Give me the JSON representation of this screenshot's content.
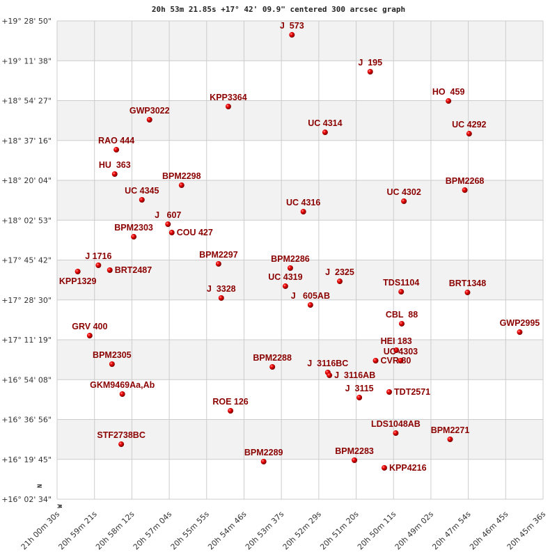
{
  "chart_data": {
    "type": "scatter",
    "title": "20h 53m 21.85s +17° 42' 09.9\" centered 300 arcsec graph",
    "x_axis": {
      "quantity": "right ascension",
      "direction": "decreasing to the right",
      "ticks": [
        "21h 00m 30s",
        "20h 59m 21s",
        "20h 58m 12s",
        "20h 57m 04s",
        "20h 55m 55s",
        "20h 54m 46s",
        "20h 53m 37s",
        "20h 52m 29s",
        "20h 51m 20s",
        "20h 50m 11s",
        "20h 49m 02s",
        "20h 47m 54s",
        "20h 46m 45s",
        "20h 45m 36s"
      ],
      "range": [
        "21h00m30s",
        "20h45m36s"
      ]
    },
    "y_axis": {
      "quantity": "declination",
      "ticks": [
        "+19° 28' 50\"",
        "+19° 11' 38\"",
        "+18° 54' 27\"",
        "+18° 37' 16\"",
        "+18° 20' 04\"",
        "+18° 02' 53\"",
        "+17° 45' 42\"",
        "+17° 28' 30\"",
        "+17° 11' 19\"",
        "+16° 54' 08\"",
        "+16° 36' 56\"",
        "+16° 19' 45\"",
        "+16° 02' 34\""
      ],
      "range": [
        "+16°02'34\"",
        "+19°28'50\""
      ]
    },
    "compass": {
      "north": "N",
      "west": "W"
    },
    "grid": true,
    "alternating_bands": true,
    "colors": {
      "point": "#dd0000",
      "label": "#8b0000",
      "band": "#f2f2f2",
      "grid": "#cccccc"
    },
    "points": [
      {
        "name": "J  573",
        "ra": "20h53m18s",
        "dec": "+19°22'49\""
      },
      {
        "name": "J  195",
        "ra": "20h50m54s",
        "dec": "+19°06'55\""
      },
      {
        "name": "HO  459",
        "ra": "20h48m30s",
        "dec": "+18°54'18\""
      },
      {
        "name": "KPP3364",
        "ra": "20h55m15s",
        "dec": "+18°51'54\""
      },
      {
        "name": "GWP3022",
        "ra": "20h57m40s",
        "dec": "+18°46'12\""
      },
      {
        "name": "UC 4314",
        "ra": "20h52m17s",
        "dec": "+18°40'47\""
      },
      {
        "name": "UC 4292",
        "ra": "20h47m52s",
        "dec": "+18°40'11\""
      },
      {
        "name": "RAO 444",
        "ra": "20h58m41s",
        "dec": "+18°33'17\""
      },
      {
        "name": "HU  363",
        "ra": "20h58m44s",
        "dec": "+18°22'47\""
      },
      {
        "name": "BPM2298",
        "ra": "20h56m41s",
        "dec": "+18°17'58\""
      },
      {
        "name": "BPM2268",
        "ra": "20h48m00s",
        "dec": "+18°15'52\""
      },
      {
        "name": "UC 4345",
        "ra": "20h57m54s",
        "dec": "+18°11'40\""
      },
      {
        "name": "UC 4302",
        "ra": "20h49m52s",
        "dec": "+18°11'04\""
      },
      {
        "name": "UC 4316",
        "ra": "20h52m57s",
        "dec": "+18°06'34\""
      },
      {
        "name": "J   607",
        "ra": "20h57m06s",
        "dec": "+18°01'10\""
      },
      {
        "name": "COU 427",
        "ra": "20h56m59s",
        "dec": "+17°57'33\""
      },
      {
        "name": "BPM2303",
        "ra": "20h58m09s",
        "dec": "+17°55'45\""
      },
      {
        "name": "BPM2297",
        "ra": "20h55m33s",
        "dec": "+17°44'03\""
      },
      {
        "name": "BPM2286",
        "ra": "20h53m21s",
        "dec": "+17°42'15\""
      },
      {
        "name": "J 1716",
        "ra": "20h59m14s",
        "dec": "+17°43'27\""
      },
      {
        "name": "BRT2487",
        "ra": "20h58m53s",
        "dec": "+17°41'21\""
      },
      {
        "name": "KPP1329",
        "ra": "20h59m52s",
        "dec": "+17°40'45\""
      },
      {
        "name": "J  2325",
        "ra": "20h51m50s",
        "dec": "+17°36'32\""
      },
      {
        "name": "UC 4319",
        "ra": "20h53m30s",
        "dec": "+17°34'26\""
      },
      {
        "name": "TDS1104",
        "ra": "20h49m57s",
        "dec": "+17°32'02\""
      },
      {
        "name": "BRT1348",
        "ra": "20h47m55s",
        "dec": "+17°31'44\""
      },
      {
        "name": "J  3328",
        "ra": "20h55m28s",
        "dec": "+17°29'20\""
      },
      {
        "name": "J   605AB",
        "ra": "20h52m44s",
        "dec": "+17°26'20\""
      },
      {
        "name": "CBL  88",
        "ra": "20h49m56s",
        "dec": "+17°18'14\""
      },
      {
        "name": "GWP2995",
        "ra": "20h46m19s",
        "dec": "+17°14'37\""
      },
      {
        "name": "GRV 400",
        "ra": "20h59m30s",
        "dec": "+17°13'07\""
      },
      {
        "name": "HEI 183",
        "ra": "20h50m06s",
        "dec": "+17°06'49\""
      },
      {
        "name": "UC 4303",
        "ra": "20h49m58s",
        "dec": "+17°02'19\""
      },
      {
        "name": "CVR 80",
        "ra": "20h50m44s",
        "dec": "+17°02'19\""
      },
      {
        "name": "BPM2305",
        "ra": "20h58m49s",
        "dec": "+17°00'49\""
      },
      {
        "name": "BPM2288",
        "ra": "20h53m54s",
        "dec": "+16°59'37\""
      },
      {
        "name": "J  3116BC",
        "ra": "20h52m12s",
        "dec": "+16°57'13\""
      },
      {
        "name": "J  3116AB",
        "ra": "20h52m09s",
        "dec": "+16°56'00\""
      },
      {
        "name": "GKM9469Aa,Ab",
        "ra": "20h58m30s",
        "dec": "+16°47'54\""
      },
      {
        "name": "TDT2571",
        "ra": "20h50m19s",
        "dec": "+16°48'48\""
      },
      {
        "name": "J  3115",
        "ra": "20h51m14s",
        "dec": "+16°46'24\""
      },
      {
        "name": "ROE 126",
        "ra": "20h55m11s",
        "dec": "+16°40'42\""
      },
      {
        "name": "LDS1048AB",
        "ra": "20h50m07s",
        "dec": "+16°31'05\""
      },
      {
        "name": "BPM2271",
        "ra": "20h48m27s",
        "dec": "+16°28'23\""
      },
      {
        "name": "STF2738BC",
        "ra": "20h58m32s",
        "dec": "+16°26'17\""
      },
      {
        "name": "BPM2283",
        "ra": "20h51m23s",
        "dec": "+16°19'23\""
      },
      {
        "name": "BPM2289",
        "ra": "20h54m10s",
        "dec": "+16°18'47\""
      },
      {
        "name": "KPP4216",
        "ra": "20h50m28s",
        "dec": "+16°16'05\""
      }
    ]
  }
}
